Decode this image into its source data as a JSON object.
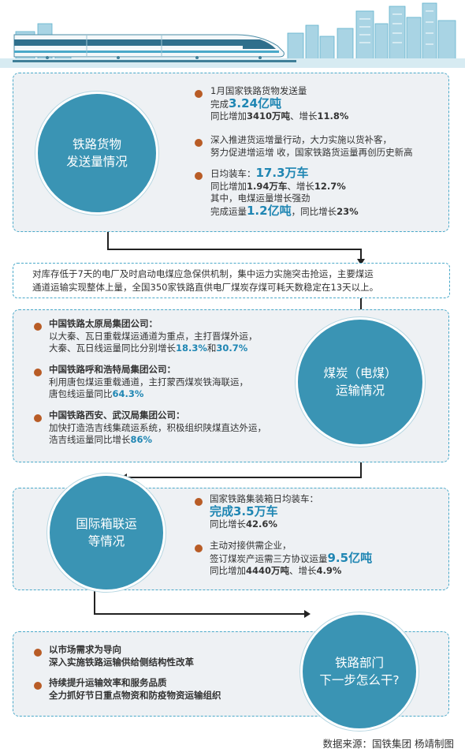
{
  "freight": {
    "title_line1": "铁路货物",
    "title_line2": "发送量情况",
    "items": [
      {
        "lines": [
          [
            {
              "t": "1月国家铁路货物发送量"
            }
          ],
          [
            {
              "t": "完成"
            },
            {
              "t": "3.24亿吨",
              "s": "hl-big"
            }
          ],
          [
            {
              "t": "同比增加"
            },
            {
              "t": "3410万吨",
              "s": "b"
            },
            {
              "t": "、增长"
            },
            {
              "t": "11.8%",
              "s": "b"
            }
          ]
        ]
      },
      {
        "lines": [
          [
            {
              "t": "深入推进货运增量行动，大力实施以货补客，"
            }
          ],
          [
            {
              "t": "努力促进增运增 收，国家铁路货运量再创历史新高"
            }
          ]
        ]
      },
      {
        "lines": [
          [
            {
              "t": "日均装车："
            },
            {
              "t": "17.3万车",
              "s": "hl-big"
            }
          ],
          [
            {
              "t": "同比增加"
            },
            {
              "t": "1.94万车",
              "s": "b"
            },
            {
              "t": "、增长"
            },
            {
              "t": "12.7%",
              "s": "b"
            }
          ],
          [
            {
              "t": "其中，电煤运量增长强劲"
            }
          ],
          [
            {
              "t": "完成运量"
            },
            {
              "t": "1.2亿吨",
              "s": "hl-big"
            },
            {
              "t": "，同比增长"
            },
            {
              "t": "23%",
              "s": "b"
            }
          ]
        ]
      }
    ]
  },
  "band": {
    "line1": "对库存低于7天的电厂及时启动电煤应急保供机制，集中运力实施突击抢运，主要煤运",
    "line2": "通道运输实现整体上量，全国350家铁路直供电厂煤炭存煤可耗天数稳定在13天以上。"
  },
  "coal": {
    "title_line1": "煤炭（电煤）",
    "title_line2": "运输情况",
    "items": [
      {
        "lines": [
          [
            {
              "t": "中国铁路太原局集团公司：",
              "s": "b"
            }
          ],
          [
            {
              "t": "以大秦、瓦日重载煤运通道为重点，主打晋煤外运，"
            }
          ],
          [
            {
              "t": "大秦、瓦日线运量同比分别增长"
            },
            {
              "t": "18.3%",
              "s": "hl"
            },
            {
              "t": "和"
            },
            {
              "t": "30.7%",
              "s": "hl"
            }
          ]
        ]
      },
      {
        "lines": [
          [
            {
              "t": "中国铁路呼和浩特局集团公司：",
              "s": "b"
            }
          ],
          [
            {
              "t": "利用唐包煤运重载通道，主打蒙西煤炭铁海联运，"
            }
          ],
          [
            {
              "t": "唐包线运量同比"
            },
            {
              "t": "64.3%",
              "s": "hl"
            }
          ]
        ]
      },
      {
        "lines": [
          [
            {
              "t": "中国铁路西安、武汉局集团公司：",
              "s": "b"
            }
          ],
          [
            {
              "t": "加快打造浩吉线集疏运系统，积极组织陕煤直达外运，"
            }
          ],
          [
            {
              "t": "浩吉线运量同比增长"
            },
            {
              "t": "86%",
              "s": "hl"
            }
          ]
        ]
      }
    ]
  },
  "container": {
    "title_line1": "国际箱联运",
    "title_line2": "等情况",
    "items": [
      {
        "lines": [
          [
            {
              "t": "国家铁路集装箱日均装车："
            }
          ],
          [
            {
              "t": "完成3.5万车",
              "s": "hl-big"
            }
          ],
          [
            {
              "t": "同比增长"
            },
            {
              "t": "42.6%",
              "s": "b"
            }
          ]
        ]
      },
      {
        "lines": [
          [
            {
              "t": "主动对接供需企业，"
            }
          ],
          [
            {
              "t": "签订煤炭产运需三方协议运量"
            },
            {
              "t": "9.5亿吨",
              "s": "hl-big"
            }
          ],
          [
            {
              "t": "同比增加"
            },
            {
              "t": "4440万吨",
              "s": "b"
            },
            {
              "t": "、增长"
            },
            {
              "t": "4.9%",
              "s": "b"
            }
          ]
        ]
      }
    ]
  },
  "next": {
    "title_line1": "铁路部门",
    "title_line2": "下一步怎么干?",
    "items": [
      {
        "lines": [
          [
            {
              "t": "以市场需求为导向",
              "s": "b"
            }
          ],
          [
            {
              "t": "深入实施铁路运输供给侧结构性改革",
              "s": "b"
            }
          ]
        ]
      },
      {
        "lines": [
          [
            {
              "t": "持续提升运输效率和服务品质",
              "s": "b"
            }
          ],
          [
            {
              "t": "全力抓好节日重点物资和防疫物资运输组织",
              "s": "b"
            }
          ]
        ]
      }
    ]
  },
  "source": "数据来源：国铁集团  杨靖制图",
  "colors": {
    "accent": "#3a94b4",
    "highlight": "#1f86b3",
    "bullet": "#b85c26",
    "panel": "#eef1f4"
  }
}
